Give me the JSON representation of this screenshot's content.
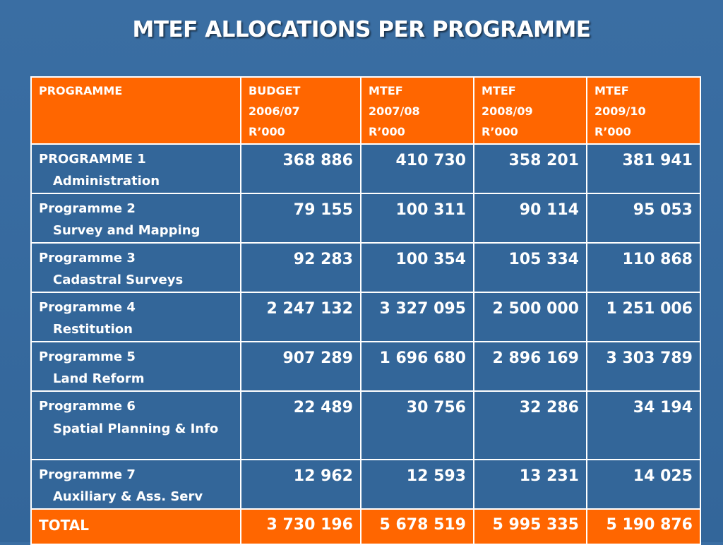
{
  "title": "MTEF ALLOCATIONS PER PROGRAMME",
  "header": {
    "programme": "PROGRAMME",
    "columns": [
      {
        "line1": "BUDGET",
        "line2": "2006/07",
        "line3": "R’000"
      },
      {
        "line1": "MTEF",
        "line2": "2007/08",
        "line3": "R’000"
      },
      {
        "line1": "MTEF",
        "line2": "2008/09",
        "line3": "R’000"
      },
      {
        "line1": "MTEF",
        "line2": "2009/10",
        "line3": "R’000"
      }
    ]
  },
  "rows": [
    {
      "name": "PROGRAMME 1",
      "sub": "Administration",
      "values": [
        "368 886",
        "410 730",
        "358 201",
        "381 941"
      ]
    },
    {
      "name": "Programme 2",
      "sub": "Survey and Mapping",
      "values": [
        "79 155",
        "100 311",
        "90 114",
        "95 053"
      ]
    },
    {
      "name": "Programme 3",
      "sub": "Cadastral Surveys",
      "values": [
        "92 283",
        "100 354",
        "105 334",
        "110 868"
      ]
    },
    {
      "name": "Programme 4",
      "sub": "Restitution",
      "values": [
        "2 247 132",
        "3 327 095",
        "2 500 000",
        "1 251 006"
      ]
    },
    {
      "name": "Programme 5",
      "sub": "Land Reform",
      "values": [
        "907 289",
        "1 696 680",
        "2 896 169",
        "3 303 789"
      ]
    },
    {
      "name": "Programme 6",
      "sub": "Spatial Planning & Info",
      "values": [
        "22 489",
        "30 756",
        "32 286",
        "34 194"
      ]
    },
    {
      "name": "Programme 7",
      "sub": "Auxiliary & Ass. Serv",
      "values": [
        "12 962",
        "12 593",
        "13 231",
        "14 025"
      ]
    }
  ],
  "total": {
    "label": "TOTAL",
    "values": [
      "3 730 196",
      "5 678 519",
      "5 995 335",
      "5 190 876"
    ]
  }
}
